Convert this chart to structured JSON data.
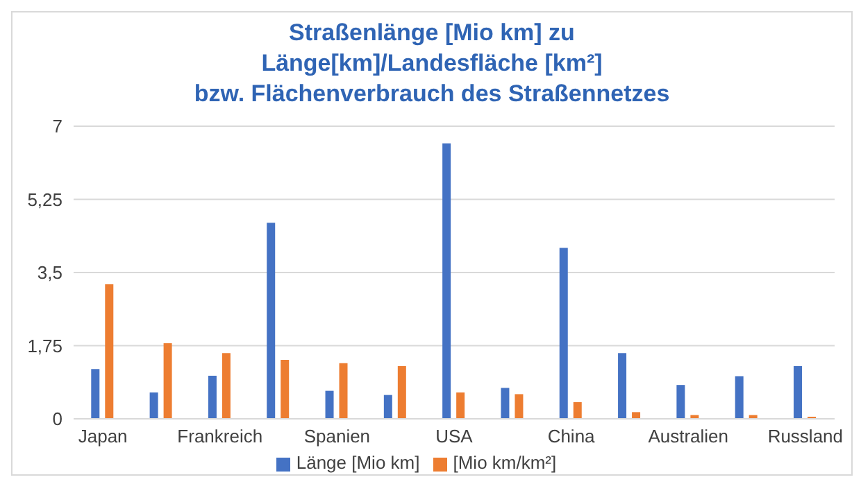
{
  "chart_data": {
    "type": "bar",
    "title": "Straßenlänge [Mio km] zu\nLänge[km]/Landesfläche [km²]\nbzw. Flächenverbrauch des Straßennetzes",
    "categories": [
      "Japan",
      null,
      "Frankreich",
      null,
      "Spanien",
      null,
      "USA",
      null,
      "China",
      null,
      "Australien",
      null,
      "Russland"
    ],
    "series": [
      {
        "name": "Länge [Mio km]",
        "color": "#4472c4",
        "values": [
          1.19,
          0.63,
          1.03,
          4.69,
          0.67,
          0.57,
          6.59,
          0.74,
          4.09,
          1.57,
          0.81,
          1.02,
          1.26
        ]
      },
      {
        "name": "[Mio km/km²]",
        "color": "#ed7d31",
        "values": [
          3.22,
          1.81,
          1.57,
          1.41,
          1.33,
          1.26,
          0.63,
          0.59,
          0.4,
          0.16,
          0.09,
          0.09,
          0.05
        ]
      }
    ],
    "ylim": [
      0,
      7
    ],
    "yticks": [
      0,
      {
        "value": 1.75,
        "label": "1,75"
      },
      {
        "value": 3.5,
        "label": "3,5"
      },
      {
        "value": 5.25,
        "label": "5,25"
      },
      7
    ],
    "grid": "y",
    "legend": "bottom"
  }
}
